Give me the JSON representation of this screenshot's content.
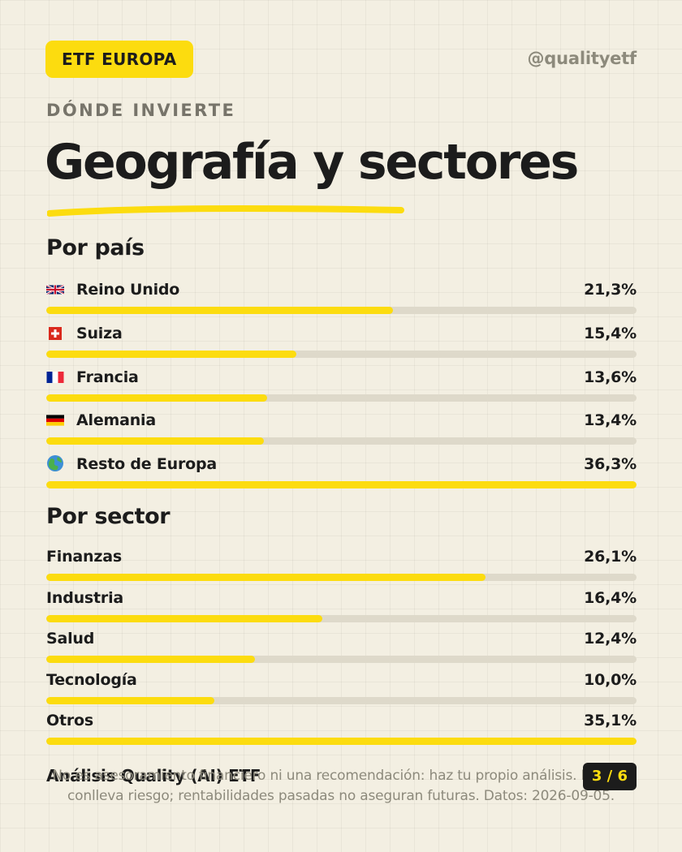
{
  "header": {
    "badge": "ETF EUROPA",
    "handle": "@qualityetf"
  },
  "kicker": "DÓNDE INVIERTE",
  "title": "Geografía y sectores",
  "countries": {
    "title": "Por país",
    "items": [
      {
        "flag": "🇬🇧",
        "icon": "uk-flag-icon",
        "label": "Reino Unido",
        "value": "21,3%",
        "percent": 21.3
      },
      {
        "flag": "🇨🇭",
        "icon": "swiss-flag-icon",
        "label": "Suiza",
        "value": "15,4%",
        "percent": 15.4
      },
      {
        "flag": "🇫🇷",
        "icon": "france-flag-icon",
        "label": "Francia",
        "value": "13,6%",
        "percent": 13.6
      },
      {
        "flag": "🇩🇪",
        "icon": "germany-flag-icon",
        "label": "Alemania",
        "value": "13,4%",
        "percent": 13.4
      },
      {
        "flag": "🌍",
        "icon": "globe-icon",
        "label": "Resto de Europa",
        "value": "36,3%",
        "percent": 36.3
      }
    ]
  },
  "sectors": {
    "title": "Por sector",
    "items": [
      {
        "label": "Finanzas",
        "value": "26,1%",
        "percent": 26.1
      },
      {
        "label": "Industria",
        "value": "16,4%",
        "percent": 16.4
      },
      {
        "label": "Salud",
        "value": "12,4%",
        "percent": 12.4
      },
      {
        "label": "Tecnología",
        "value": "10,0%",
        "percent": 10.0
      },
      {
        "label": "Otros",
        "value": "35,1%",
        "percent": 35.1
      }
    ]
  },
  "footer": {
    "brand": "Análisis Quality (AI) ETF",
    "disclaimer": "No es asesoramiento financiero ni una recomendación: haz tu propio análisis. Invertir conlleva riesgo; rentabilidades pasadas no aseguran futuras. Datos: 2026-09-05.",
    "page": "3 / 6"
  },
  "colors": {
    "accent": "#fcdc0f",
    "track": "#ded9ca",
    "background": "#f3efe2",
    "text": "#1c1c1c",
    "muted": "#8d8a7c"
  }
}
